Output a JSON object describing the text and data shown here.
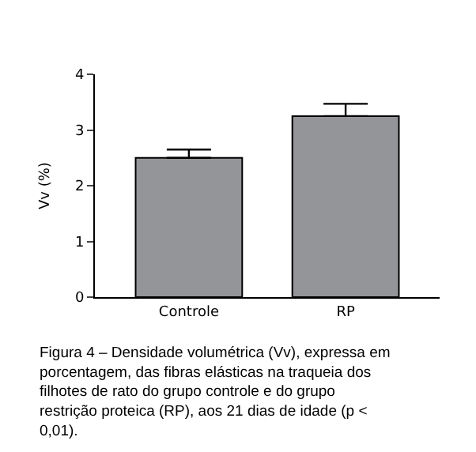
{
  "chart_data": {
    "type": "bar",
    "ylabel": "Vv (%)",
    "categories": [
      "Controle",
      "RP"
    ],
    "values": [
      2.5,
      3.25
    ],
    "errors": [
      [
        2.5,
        2.65
      ],
      [
        3.25,
        3.47
      ]
    ],
    "color": "#939598",
    "ylim": [
      0,
      4
    ],
    "yticks": [
      0,
      1,
      2,
      3,
      4
    ],
    "annotations": [
      "Figura 4 – Densidade volumétrica (Vv), expressa em porcentagem, das fibras elásticas na traqueia dos filhotes de rato do grupo controle e do grupo restrição proteica (RP), aos 21 dias de idade (p < 0,01)."
    ]
  }
}
